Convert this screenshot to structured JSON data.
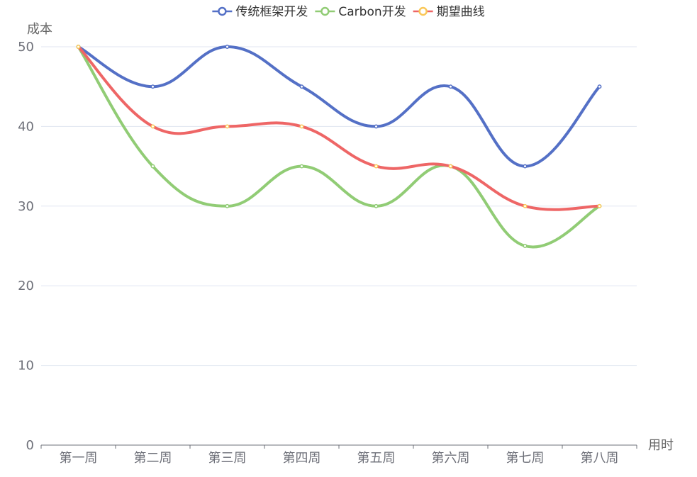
{
  "chart_data": {
    "type": "line",
    "smooth": true,
    "categories": [
      "第一周",
      "第二周",
      "第三周",
      "第四周",
      "第五周",
      "第六周",
      "第七周",
      "第八周"
    ],
    "series": [
      {
        "name": "传统框架开发",
        "color": "#5470c6",
        "values": [
          50,
          45,
          50,
          45,
          40,
          45,
          35,
          45
        ]
      },
      {
        "name": "Carbon开发",
        "color": "#91cc75",
        "values": [
          50,
          35,
          30,
          35,
          30,
          35,
          25,
          30
        ]
      },
      {
        "name": "期望曲线",
        "color": "#fac858",
        "line_color": "#ee6666",
        "values": [
          50,
          40,
          40,
          40,
          35,
          35,
          30,
          30
        ]
      }
    ],
    "xlabel": "用时",
    "ylabel": "成本",
    "ylim": [
      0,
      50
    ],
    "yticks": [
      0,
      10,
      20,
      30,
      40,
      50
    ],
    "grid": true,
    "legend_position": "top-center"
  }
}
